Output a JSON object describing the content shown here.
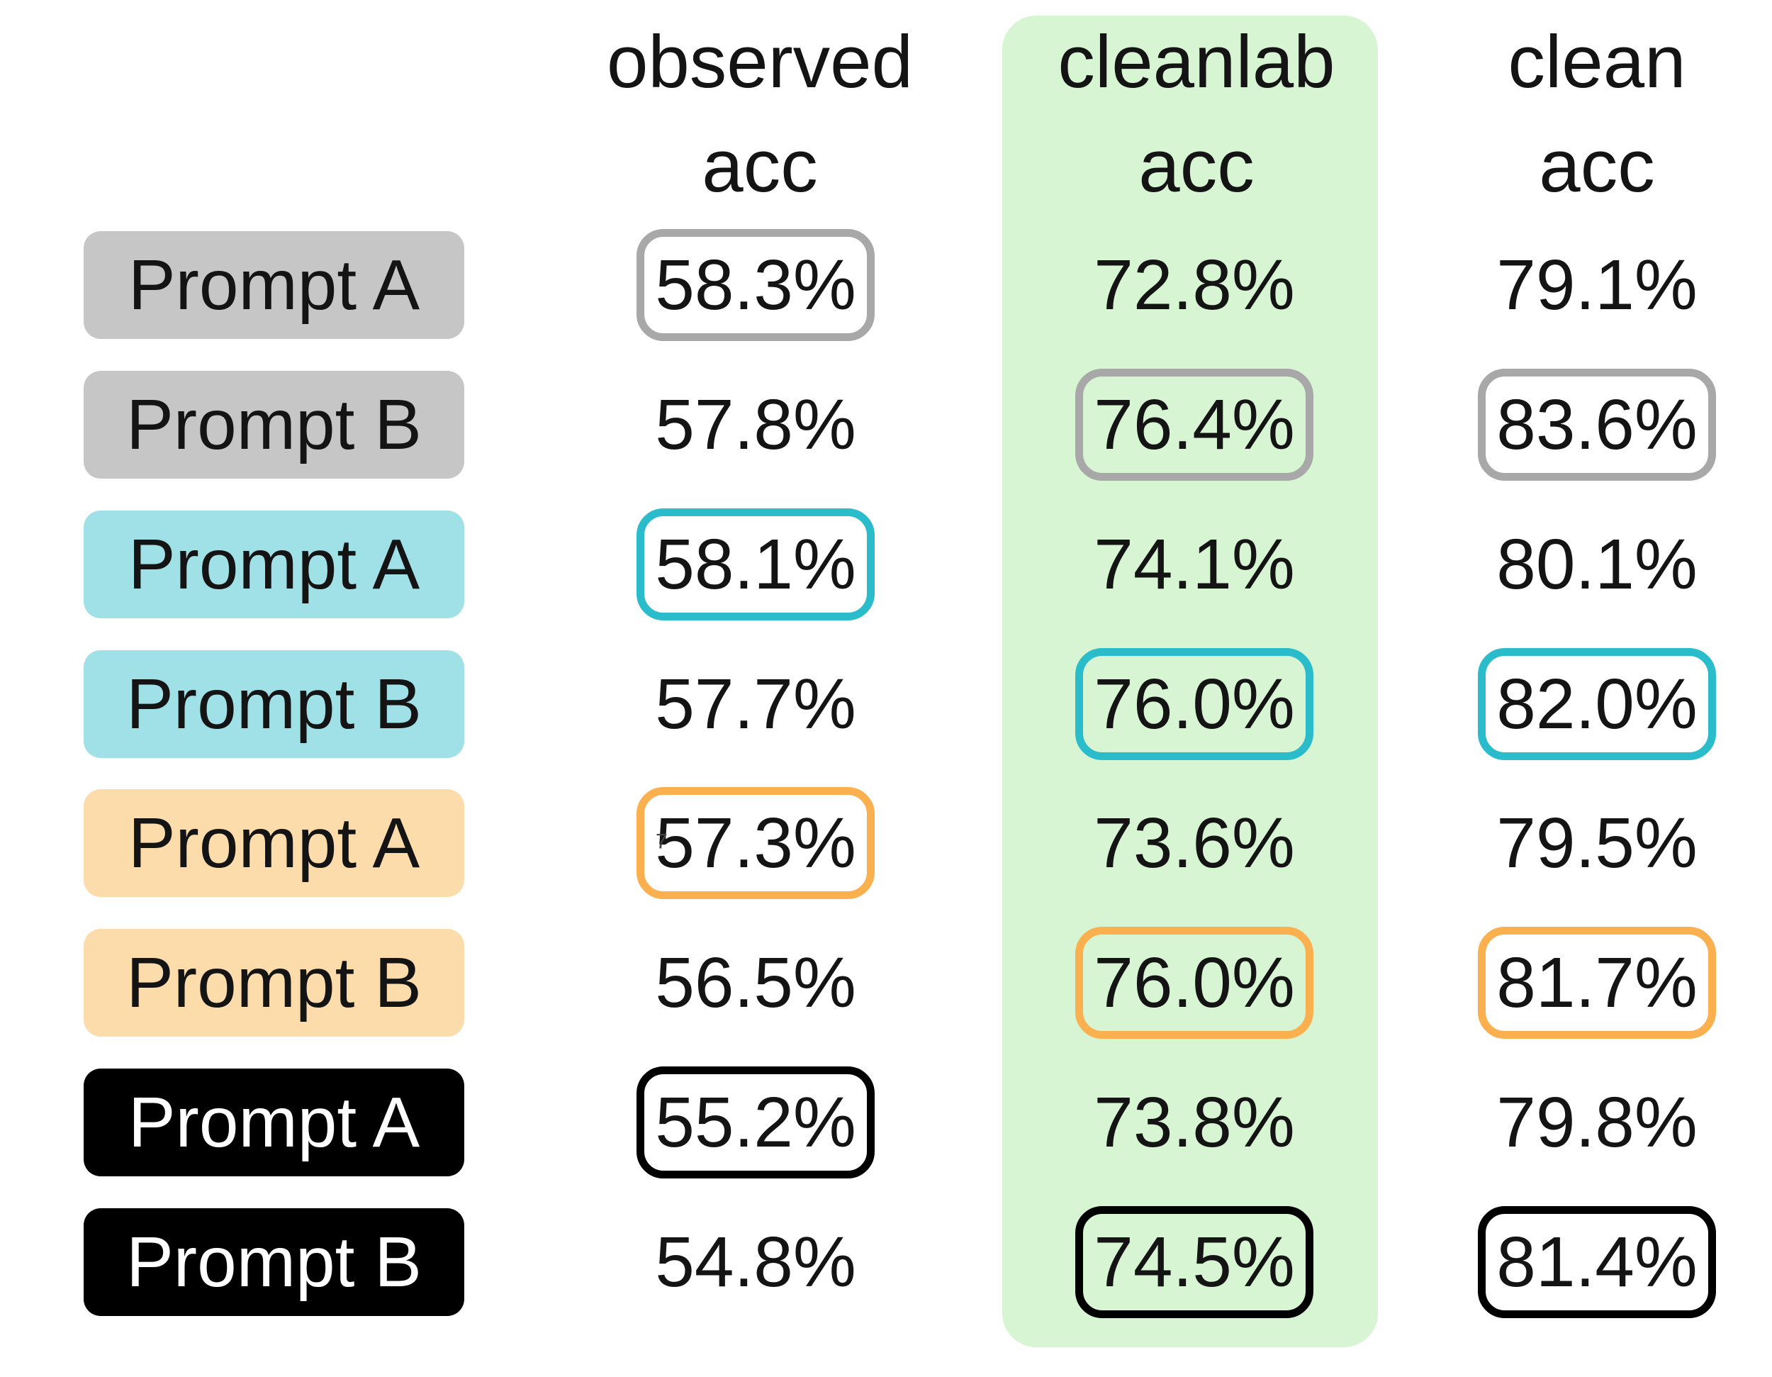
{
  "header": {
    "observed": [
      "observed",
      "acc"
    ],
    "cleanlab": [
      "cleanlab",
      "acc"
    ],
    "clean": [
      "clean",
      "acc"
    ]
  },
  "rows": [
    {
      "prompt": "Prompt A",
      "group": "gray",
      "observed": "58.3%",
      "cleanlab": "72.8%",
      "clean": "79.1%",
      "boxed_cells": [
        "observed"
      ]
    },
    {
      "prompt": "Prompt B",
      "group": "gray",
      "observed": "57.8%",
      "cleanlab": "76.4%",
      "clean": "83.6%",
      "boxed_cells": [
        "cleanlab",
        "clean"
      ]
    },
    {
      "prompt": "Prompt A",
      "group": "teal",
      "observed": "58.1%",
      "cleanlab": "74.1%",
      "clean": "80.1%",
      "boxed_cells": [
        "observed"
      ]
    },
    {
      "prompt": "Prompt B",
      "group": "teal",
      "observed": "57.7%",
      "cleanlab": "76.0%",
      "clean": "82.0%",
      "boxed_cells": [
        "cleanlab",
        "clean"
      ]
    },
    {
      "prompt": "Prompt A",
      "group": "orange",
      "observed": "57.3%",
      "cleanlab": "73.6%",
      "clean": "79.5%",
      "boxed_cells": [
        "observed"
      ]
    },
    {
      "prompt": "Prompt B",
      "group": "orange",
      "observed": "56.5%",
      "cleanlab": "76.0%",
      "clean": "81.7%",
      "boxed_cells": [
        "cleanlab",
        "clean"
      ]
    },
    {
      "prompt": "Prompt A",
      "group": "black",
      "observed": "55.2%",
      "cleanlab": "73.8%",
      "clean": "79.8%",
      "boxed_cells": [
        "observed"
      ]
    },
    {
      "prompt": "Prompt B",
      "group": "black",
      "observed": "54.8%",
      "cleanlab": "74.5%",
      "clean": "81.4%",
      "boxed_cells": [
        "cleanlab",
        "clean"
      ]
    }
  ],
  "artifact_mark": "7",
  "colors": {
    "text": "#141414",
    "gray_label_bg": "#c6c6c6",
    "teal_label_bg": "#a0e0e7",
    "orange_label_bg": "#fcdcab",
    "black_label_bg": "#000000",
    "black_label_text": "#ffffff",
    "cleanlab_strip_bg": "#d7f5d3",
    "gray_box_border": "#a8a8a8",
    "teal_box_border": "#2abcca",
    "orange_box_border": "#fbb050",
    "black_box_border": "#000000"
  },
  "chart_data": {
    "type": "table",
    "title": "",
    "columns": [
      "observed acc",
      "cleanlab acc",
      "clean acc"
    ],
    "highlighted_column": "cleanlab acc",
    "rows": [
      {
        "label": "Prompt A",
        "group_color": "gray",
        "observed_acc": 58.3,
        "cleanlab_acc": 72.8,
        "clean_acc": 79.1,
        "outlined_values": [
          "observed_acc"
        ]
      },
      {
        "label": "Prompt B",
        "group_color": "gray",
        "observed_acc": 57.8,
        "cleanlab_acc": 76.4,
        "clean_acc": 83.6,
        "outlined_values": [
          "cleanlab_acc",
          "clean_acc"
        ]
      },
      {
        "label": "Prompt A",
        "group_color": "teal",
        "observed_acc": 58.1,
        "cleanlab_acc": 74.1,
        "clean_acc": 80.1,
        "outlined_values": [
          "observed_acc"
        ]
      },
      {
        "label": "Prompt B",
        "group_color": "teal",
        "observed_acc": 57.7,
        "cleanlab_acc": 76.0,
        "clean_acc": 82.0,
        "outlined_values": [
          "cleanlab_acc",
          "clean_acc"
        ]
      },
      {
        "label": "Prompt A",
        "group_color": "orange",
        "observed_acc": 57.3,
        "cleanlab_acc": 73.6,
        "clean_acc": 79.5,
        "outlined_values": [
          "observed_acc"
        ]
      },
      {
        "label": "Prompt B",
        "group_color": "orange",
        "observed_acc": 56.5,
        "cleanlab_acc": 76.0,
        "clean_acc": 81.7,
        "outlined_values": [
          "cleanlab_acc",
          "clean_acc"
        ]
      },
      {
        "label": "Prompt A",
        "group_color": "black",
        "observed_acc": 55.2,
        "cleanlab_acc": 73.8,
        "clean_acc": 79.8,
        "outlined_values": [
          "observed_acc"
        ]
      },
      {
        "label": "Prompt B",
        "group_color": "black",
        "observed_acc": 54.8,
        "cleanlab_acc": 74.5,
        "clean_acc": 81.4,
        "outlined_values": [
          "cleanlab_acc",
          "clean_acc"
        ]
      }
    ]
  }
}
